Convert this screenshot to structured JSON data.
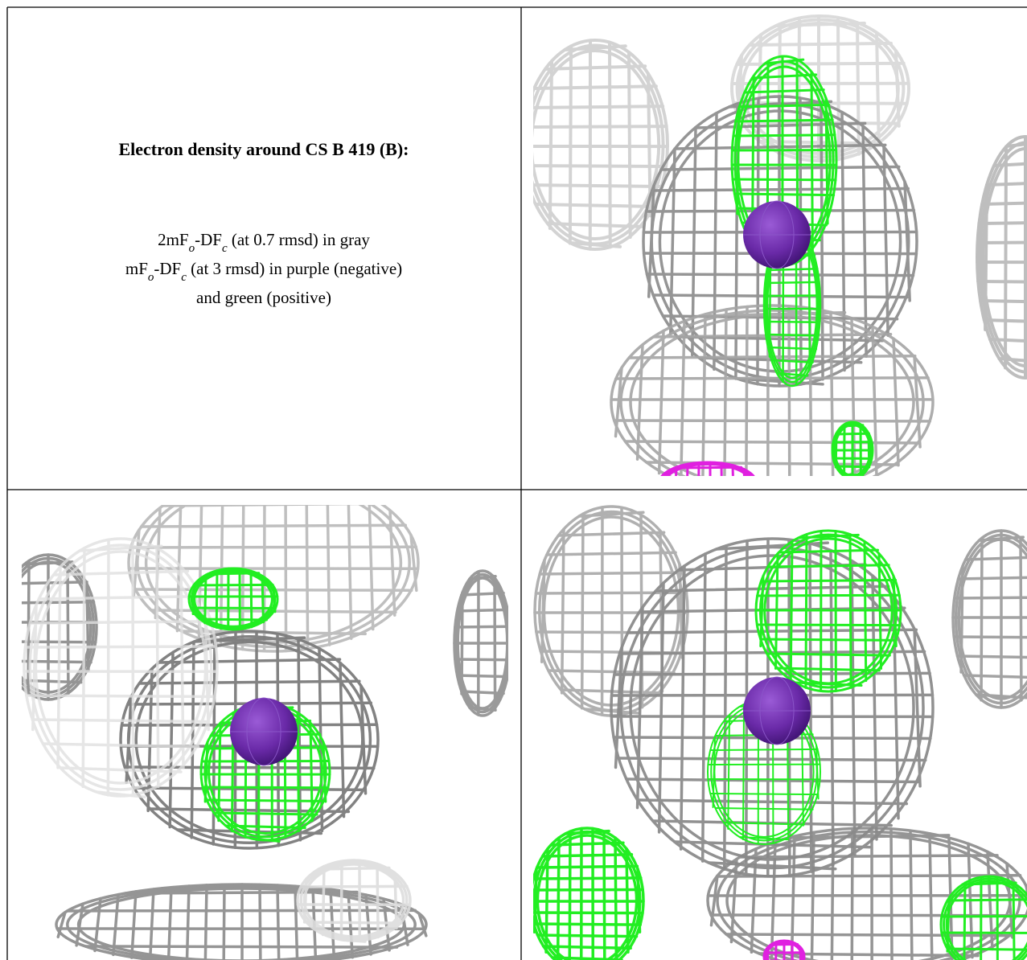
{
  "title": "Electron density around CS B 419 (B):",
  "caption": [
    [
      "2mF",
      "o",
      "-DF",
      "c",
      " (at 0.7 rmsd) in gray"
    ],
    [
      "mF",
      "o",
      "-DF",
      "c",
      " (at 3 rmsd) in purple (negative)"
    ],
    [
      "and green (positive)"
    ]
  ]
}
